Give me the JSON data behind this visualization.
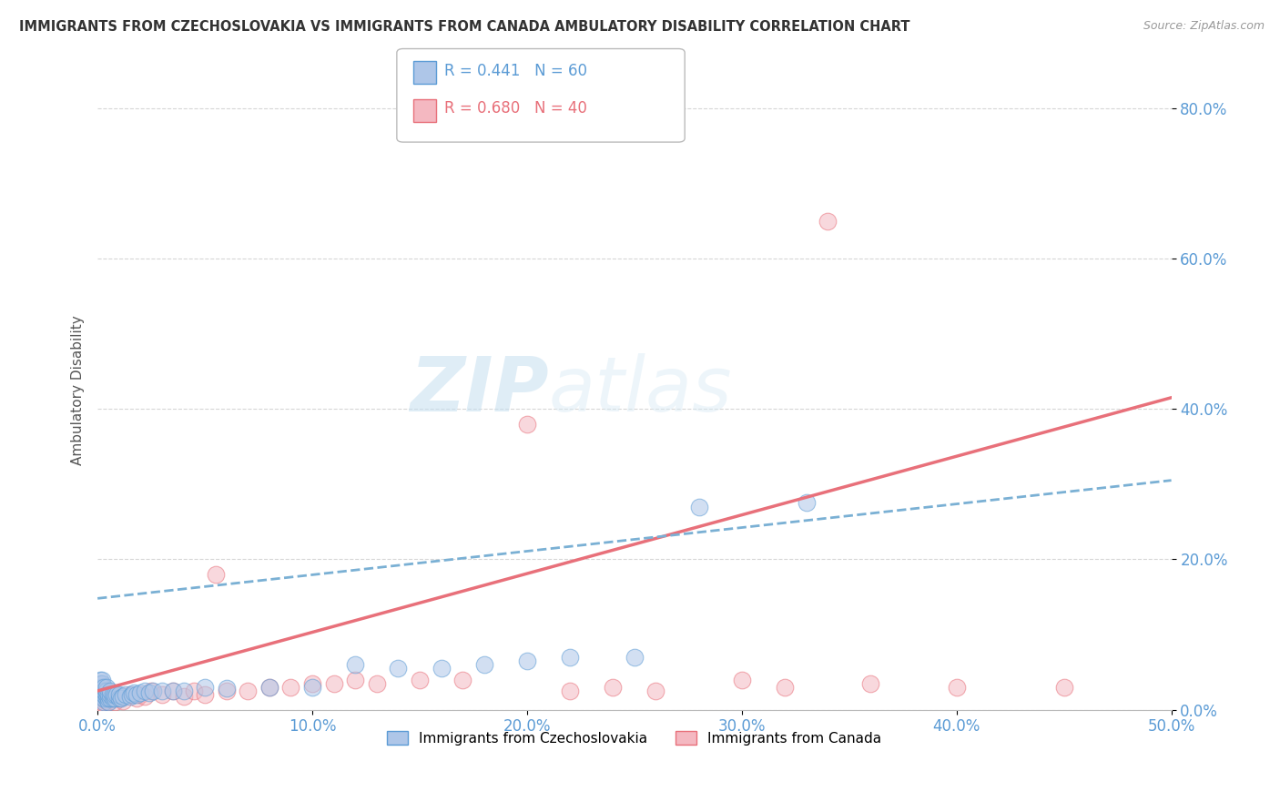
{
  "title": "IMMIGRANTS FROM CZECHOSLOVAKIA VS IMMIGRANTS FROM CANADA AMBULATORY DISABILITY CORRELATION CHART",
  "source": "Source: ZipAtlas.com",
  "ylabel": "Ambulatory Disability",
  "legend_label1": "Immigrants from Czechoslovakia",
  "legend_label2": "Immigrants from Canada",
  "R1": 0.441,
  "N1": 60,
  "R2": 0.68,
  "N2": 40,
  "xlim": [
    0.0,
    0.5
  ],
  "ylim": [
    0.0,
    0.85
  ],
  "xticks": [
    0.0,
    0.1,
    0.2,
    0.3,
    0.4,
    0.5
  ],
  "yticks": [
    0.0,
    0.2,
    0.4,
    0.6,
    0.8
  ],
  "color1": "#aec6e8",
  "color2": "#f4b8c1",
  "edge_color1": "#5b9bd5",
  "edge_color2": "#e8707a",
  "trendline_color1": "#7ab0d4",
  "trendline_color2": "#e8707a",
  "background_color": "#ffffff",
  "watermark_zip": "ZIP",
  "watermark_atlas": "atlas",
  "scatter1_x": [
    0.001,
    0.001,
    0.001,
    0.001,
    0.001,
    0.002,
    0.002,
    0.002,
    0.002,
    0.002,
    0.002,
    0.003,
    0.003,
    0.003,
    0.003,
    0.003,
    0.004,
    0.004,
    0.004,
    0.004,
    0.005,
    0.005,
    0.005,
    0.006,
    0.006,
    0.006,
    0.007,
    0.007,
    0.008,
    0.008,
    0.009,
    0.01,
    0.01,
    0.011,
    0.012,
    0.013,
    0.015,
    0.016,
    0.017,
    0.018,
    0.02,
    0.022,
    0.024,
    0.026,
    0.03,
    0.035,
    0.04,
    0.05,
    0.06,
    0.08,
    0.1,
    0.12,
    0.14,
    0.16,
    0.18,
    0.2,
    0.22,
    0.25,
    0.28,
    0.33
  ],
  "scatter1_y": [
    0.02,
    0.025,
    0.03,
    0.035,
    0.04,
    0.015,
    0.02,
    0.025,
    0.03,
    0.035,
    0.04,
    0.01,
    0.015,
    0.02,
    0.025,
    0.03,
    0.015,
    0.02,
    0.025,
    0.03,
    0.01,
    0.015,
    0.02,
    0.015,
    0.02,
    0.025,
    0.015,
    0.02,
    0.015,
    0.02,
    0.02,
    0.015,
    0.02,
    0.015,
    0.018,
    0.02,
    0.018,
    0.02,
    0.022,
    0.02,
    0.022,
    0.025,
    0.022,
    0.025,
    0.025,
    0.025,
    0.025,
    0.03,
    0.028,
    0.03,
    0.03,
    0.06,
    0.055,
    0.055,
    0.06,
    0.065,
    0.07,
    0.07,
    0.27,
    0.275
  ],
  "scatter2_x": [
    0.001,
    0.002,
    0.003,
    0.004,
    0.005,
    0.006,
    0.008,
    0.01,
    0.012,
    0.015,
    0.018,
    0.02,
    0.022,
    0.025,
    0.03,
    0.035,
    0.04,
    0.045,
    0.05,
    0.055,
    0.06,
    0.07,
    0.08,
    0.09,
    0.1,
    0.11,
    0.12,
    0.13,
    0.15,
    0.17,
    0.2,
    0.22,
    0.24,
    0.26,
    0.3,
    0.32,
    0.34,
    0.36,
    0.4,
    0.45
  ],
  "scatter2_y": [
    0.005,
    0.01,
    0.008,
    0.012,
    0.01,
    0.015,
    0.01,
    0.015,
    0.012,
    0.02,
    0.015,
    0.02,
    0.018,
    0.025,
    0.02,
    0.025,
    0.018,
    0.025,
    0.02,
    0.18,
    0.025,
    0.025,
    0.03,
    0.03,
    0.035,
    0.035,
    0.04,
    0.035,
    0.04,
    0.04,
    0.38,
    0.025,
    0.03,
    0.025,
    0.04,
    0.03,
    0.65,
    0.035,
    0.03,
    0.03
  ],
  "trendline1_x0": 0.0,
  "trendline1_y0": 0.148,
  "trendline1_x1": 0.5,
  "trendline1_y1": 0.305,
  "trendline2_x0": 0.0,
  "trendline2_y0": 0.025,
  "trendline2_x1": 0.5,
  "trendline2_y1": 0.415
}
